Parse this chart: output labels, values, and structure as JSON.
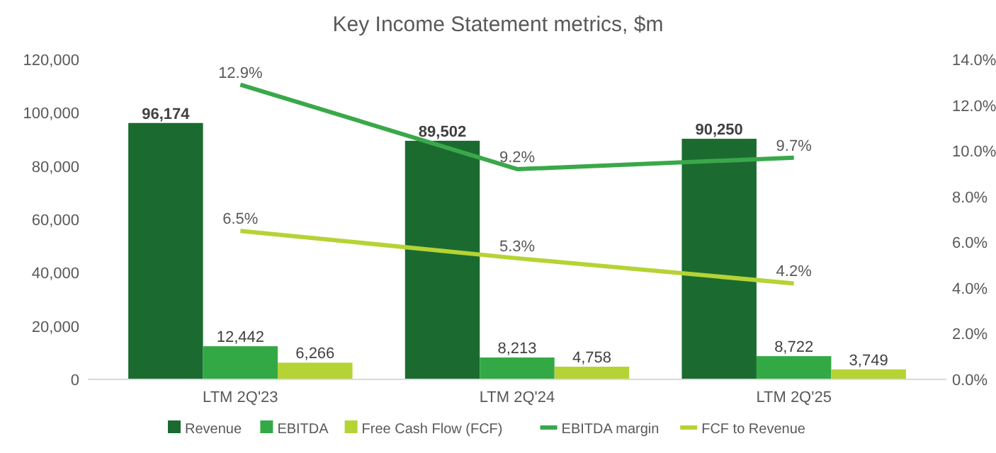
{
  "chart_data": {
    "type": "bar",
    "title": "Key Income Statement metrics, $m",
    "categories": [
      "LTM 2Q'23",
      "LTM 2Q'24",
      "LTM 2Q'25"
    ],
    "series": [
      {
        "name": "Revenue",
        "color": "#1b6b30",
        "values": [
          96174,
          89502,
          90250
        ],
        "value_labels": [
          "96,174",
          "89,502",
          "90,250"
        ]
      },
      {
        "name": "EBITDA",
        "color": "#33a946",
        "values": [
          12442,
          8213,
          8722
        ],
        "value_labels": [
          "12,442",
          "8,213",
          "8,722"
        ]
      },
      {
        "name": "Free Cash Flow (FCF)",
        "color": "#b5d334",
        "values": [
          6266,
          4758,
          3749
        ],
        "value_labels": [
          "6,266",
          "4,758",
          "3,749"
        ]
      },
      {
        "name": "EBITDA margin",
        "type": "line",
        "axis": "y2",
        "color": "#3aa84a",
        "values": [
          12.9,
          9.2,
          9.7
        ],
        "value_labels": [
          "12.9%",
          "9.2%",
          "9.7%"
        ]
      },
      {
        "name": "FCF to Revenue",
        "type": "line",
        "axis": "y2",
        "color": "#b5d334",
        "values": [
          6.5,
          5.3,
          4.2
        ],
        "value_labels": [
          "6.5%",
          "5.3%",
          "4.2%"
        ]
      }
    ],
    "ylim": [
      0,
      120000
    ],
    "yticks": [
      {
        "value": 0,
        "label": "0"
      },
      {
        "value": 20000,
        "label": "20,000"
      },
      {
        "value": 40000,
        "label": "40,000"
      },
      {
        "value": 60000,
        "label": "60,000"
      },
      {
        "value": 80000,
        "label": "80,000"
      },
      {
        "value": 100000,
        "label": "100,000"
      },
      {
        "value": 120000,
        "label": "120,000"
      }
    ],
    "y2lim": [
      0,
      14
    ],
    "y2ticks": [
      {
        "value": 0,
        "label": "0.0%"
      },
      {
        "value": 2,
        "label": "2.0%"
      },
      {
        "value": 4,
        "label": "4.0%"
      },
      {
        "value": 6,
        "label": "6.0%"
      },
      {
        "value": 8,
        "label": "8.0%"
      },
      {
        "value": 10,
        "label": "10.0%"
      },
      {
        "value": 12,
        "label": "12.0%"
      },
      {
        "value": 14,
        "label": "14.0%"
      }
    ],
    "grid": false,
    "legend": "bottom"
  }
}
